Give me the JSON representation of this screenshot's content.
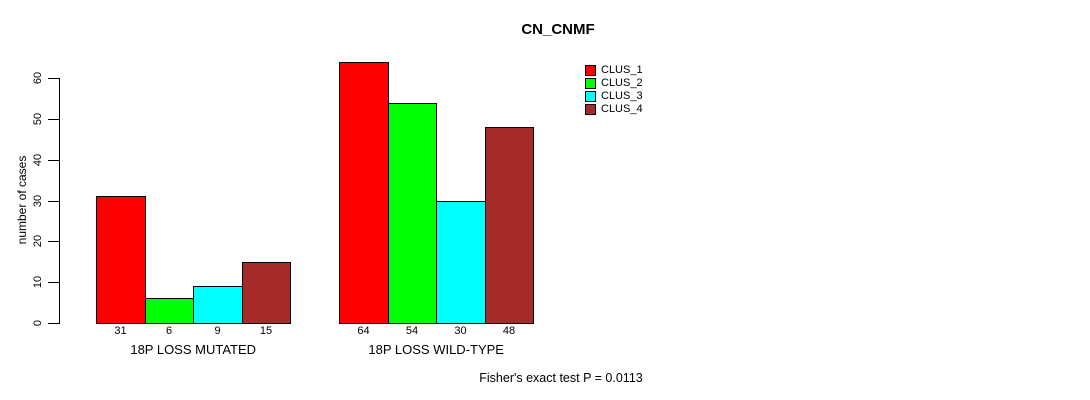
{
  "chart_data": {
    "type": "bar",
    "title": "CN_CNMF",
    "ylabel": "number of cases",
    "xlabel": "",
    "categories": [
      "18P LOSS MUTATED",
      "18P LOSS WILD-TYPE"
    ],
    "series": [
      {
        "name": "CLUS_1",
        "color": "#ff0000",
        "values": [
          31,
          64
        ]
      },
      {
        "name": "CLUS_2",
        "color": "#00ff00",
        "values": [
          6,
          54
        ]
      },
      {
        "name": "CLUS_3",
        "color": "#00ffff",
        "values": [
          9,
          30
        ]
      },
      {
        "name": "CLUS_4",
        "color": "#a52a2a",
        "values": [
          15,
          48
        ]
      }
    ],
    "y_ticks": [
      0,
      10,
      20,
      30,
      40,
      50,
      60
    ],
    "ylim": [
      0,
      60
    ],
    "grid": false,
    "show_values_under_bars": true,
    "legend_position": "top-right",
    "bar_border_color": "#000000",
    "annotation": "Fisher's exact test P = 0.0113"
  }
}
